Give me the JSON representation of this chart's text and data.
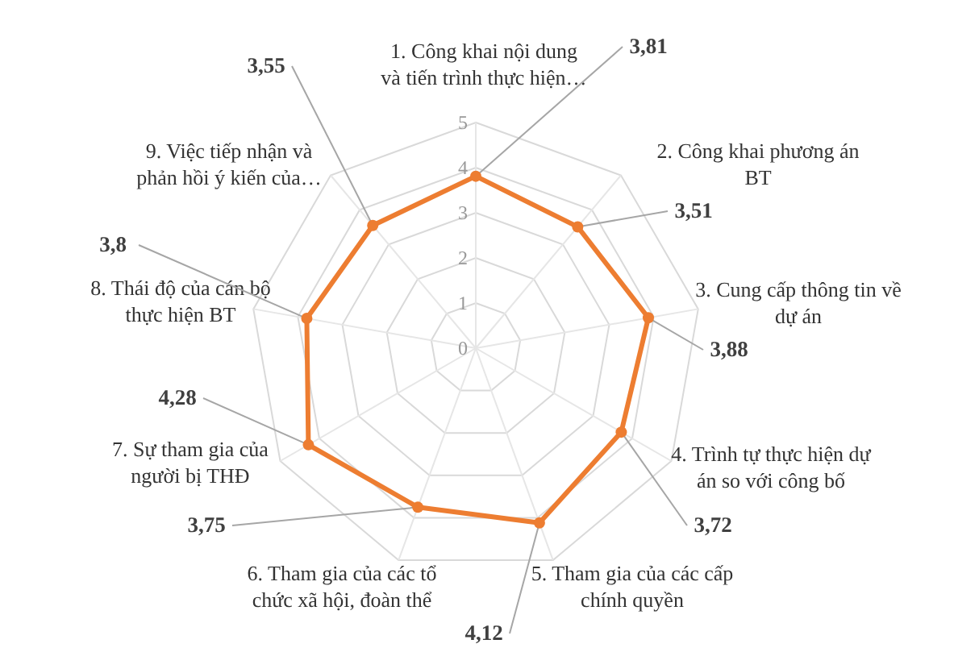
{
  "chart_data": {
    "type": "radar",
    "categories": [
      "1. Công khai nội dung và tiến trình thực hiện…",
      "2. Công khai phương án BT",
      "3. Cung cấp thông tin về dự án",
      "4. Trình tự thực hiện dự án so với công bố",
      "5. Tham gia của các cấp chính quyền",
      "6. Tham gia của các tổ chức xã hội, đoàn thể",
      "7. Sự tham gia của người bị THĐ",
      "8. Thái độ của cán bộ thực hiện BT",
      "9. Việc tiếp nhận và phản hồi ý kiến của…"
    ],
    "series": [
      {
        "color": "#ed7d31",
        "values": [
          3.81,
          3.51,
          3.88,
          3.72,
          4.12,
          3.75,
          4.28,
          3.8,
          3.55
        ],
        "value_labels": [
          "3,81",
          "3,51",
          "3,88",
          "3,72",
          "4,12",
          "3,75",
          "4,28",
          "3,8",
          "3,55"
        ]
      }
    ],
    "ylim": [
      0,
      5
    ],
    "yticks": [
      0,
      1,
      2,
      3,
      4,
      5
    ],
    "grid": true,
    "marker": "circle"
  }
}
